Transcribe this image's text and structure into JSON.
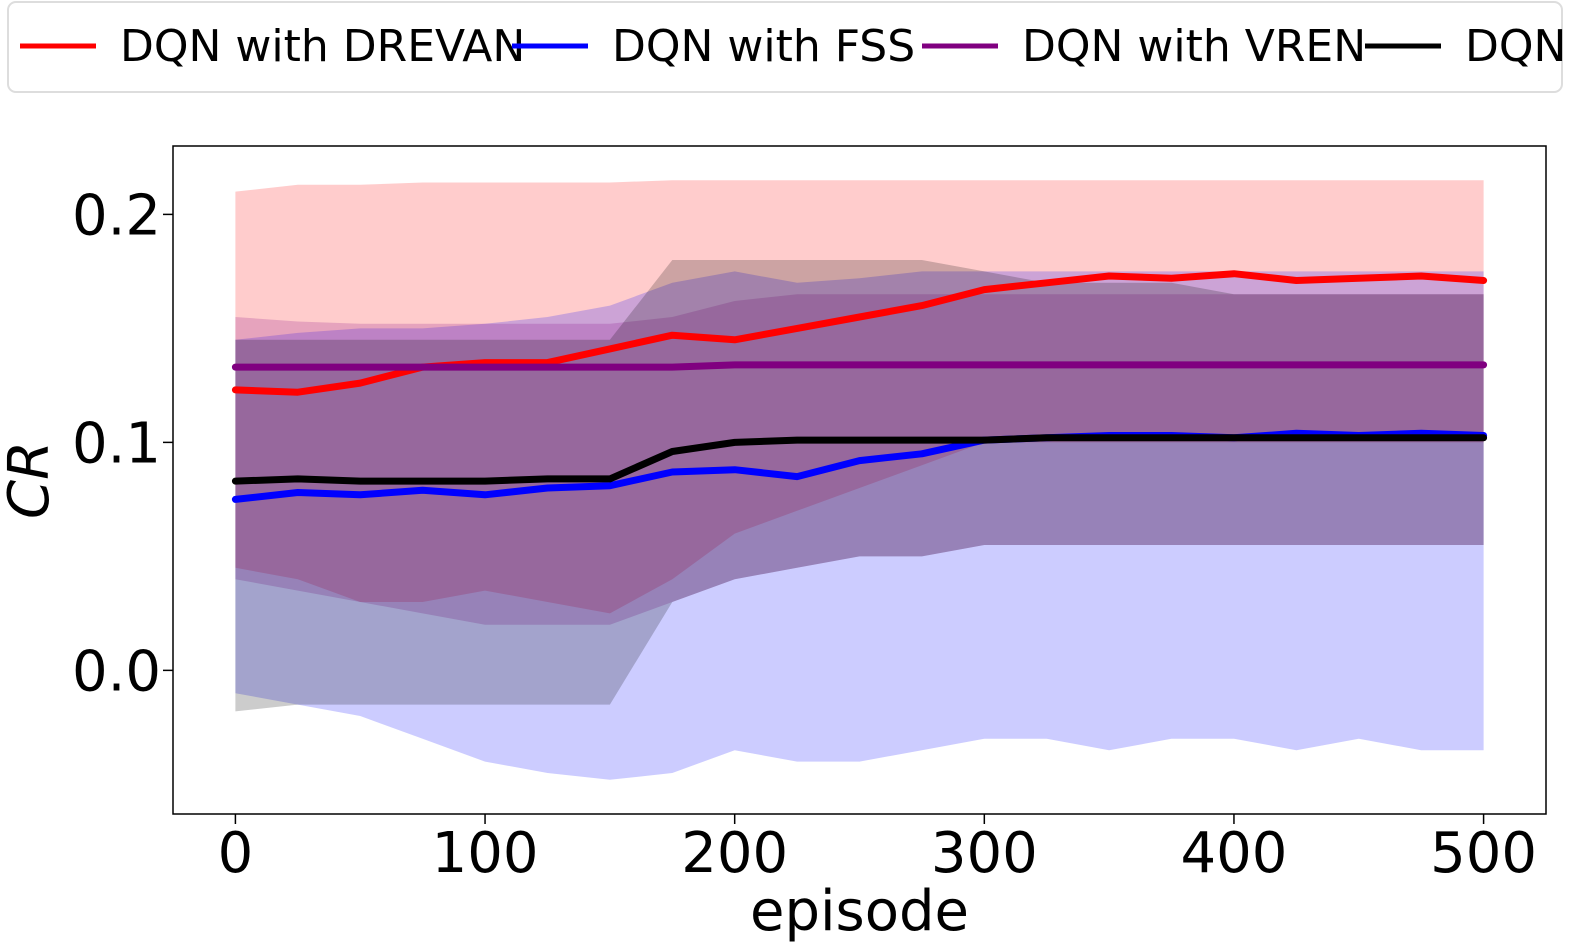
{
  "chart_data": {
    "type": "line",
    "title": "",
    "xlabel": "episode",
    "ylabel": "CR",
    "xlim": [
      -25,
      525
    ],
    "ylim": [
      -0.063,
      0.23
    ],
    "xticks": [
      0,
      100,
      200,
      300,
      400,
      500
    ],
    "xtick_labels": [
      "0",
      "100",
      "200",
      "300",
      "400",
      "500"
    ],
    "yticks": [
      0.0,
      0.1,
      0.2
    ],
    "ytick_labels": [
      "0.0",
      "0.1",
      "0.2"
    ],
    "grid": false,
    "legend": {
      "placement": "top, outside, single row",
      "entries": [
        "DQN with DREVAN",
        "DQN with FSS",
        "DQN with VREN",
        "DQN"
      ]
    },
    "series": [
      {
        "name": "DQN with DREVAN",
        "color": "#ff0000",
        "x": [
          0,
          25,
          50,
          75,
          100,
          125,
          150,
          175,
          200,
          225,
          250,
          275,
          300,
          325,
          350,
          375,
          400,
          425,
          450,
          475,
          500
        ],
        "mean": [
          0.123,
          0.122,
          0.126,
          0.133,
          0.135,
          0.135,
          0.141,
          0.147,
          0.145,
          0.15,
          0.155,
          0.16,
          0.167,
          0.17,
          0.173,
          0.172,
          0.174,
          0.171,
          0.172,
          0.173,
          0.171
        ],
        "upper": [
          0.21,
          0.213,
          0.213,
          0.214,
          0.214,
          0.214,
          0.214,
          0.215,
          0.215,
          0.215,
          0.215,
          0.215,
          0.215,
          0.215,
          0.215,
          0.215,
          0.215,
          0.215,
          0.215,
          0.215,
          0.215
        ],
        "lower": [
          0.045,
          0.04,
          0.03,
          0.03,
          0.035,
          0.03,
          0.025,
          0.04,
          0.06,
          0.07,
          0.08,
          0.09,
          0.1,
          0.1,
          0.1,
          0.1,
          0.1,
          0.1,
          0.1,
          0.1,
          0.1
        ]
      },
      {
        "name": "DQN with FSS",
        "color": "#0000ff",
        "x": [
          0,
          25,
          50,
          75,
          100,
          125,
          150,
          175,
          200,
          225,
          250,
          275,
          300,
          325,
          350,
          375,
          400,
          425,
          450,
          475,
          500
        ],
        "mean": [
          0.075,
          0.078,
          0.077,
          0.079,
          0.077,
          0.08,
          0.081,
          0.087,
          0.088,
          0.085,
          0.092,
          0.095,
          0.101,
          0.102,
          0.103,
          0.103,
          0.102,
          0.104,
          0.103,
          0.104,
          0.103
        ],
        "upper": [
          0.145,
          0.148,
          0.15,
          0.15,
          0.152,
          0.155,
          0.16,
          0.17,
          0.175,
          0.17,
          0.172,
          0.175,
          0.175,
          0.175,
          0.175,
          0.175,
          0.175,
          0.175,
          0.175,
          0.175,
          0.175
        ],
        "lower": [
          -0.01,
          -0.015,
          -0.02,
          -0.03,
          -0.04,
          -0.045,
          -0.048,
          -0.045,
          -0.035,
          -0.04,
          -0.04,
          -0.035,
          -0.03,
          -0.03,
          -0.035,
          -0.03,
          -0.03,
          -0.035,
          -0.03,
          -0.035,
          -0.035
        ]
      },
      {
        "name": "DQN with VREN",
        "color": "#800080",
        "x": [
          0,
          25,
          50,
          75,
          100,
          125,
          150,
          175,
          200,
          225,
          250,
          275,
          300,
          325,
          350,
          375,
          400,
          425,
          450,
          475,
          500
        ],
        "mean": [
          0.133,
          0.133,
          0.133,
          0.133,
          0.133,
          0.133,
          0.133,
          0.133,
          0.134,
          0.134,
          0.134,
          0.134,
          0.134,
          0.134,
          0.134,
          0.134,
          0.134,
          0.134,
          0.134,
          0.134,
          0.134
        ],
        "upper": [
          0.155,
          0.153,
          0.152,
          0.152,
          0.152,
          0.152,
          0.152,
          0.155,
          0.162,
          0.165,
          0.165,
          0.165,
          0.165,
          0.165,
          0.165,
          0.165,
          0.165,
          0.165,
          0.165,
          0.165,
          0.165
        ],
        "lower": [
          0.04,
          0.035,
          0.03,
          0.025,
          0.02,
          0.02,
          0.02,
          0.03,
          0.04,
          0.045,
          0.05,
          0.05,
          0.055,
          0.055,
          0.055,
          0.055,
          0.055,
          0.055,
          0.055,
          0.055,
          0.055
        ]
      },
      {
        "name": "DQN",
        "color": "#000000",
        "x": [
          0,
          25,
          50,
          75,
          100,
          125,
          150,
          175,
          200,
          225,
          250,
          275,
          300,
          325,
          350,
          375,
          400,
          425,
          450,
          475,
          500
        ],
        "mean": [
          0.083,
          0.084,
          0.083,
          0.083,
          0.083,
          0.084,
          0.084,
          0.096,
          0.1,
          0.101,
          0.101,
          0.101,
          0.101,
          0.102,
          0.102,
          0.102,
          0.102,
          0.102,
          0.102,
          0.102,
          0.102
        ],
        "upper": [
          0.145,
          0.145,
          0.145,
          0.145,
          0.145,
          0.145,
          0.145,
          0.18,
          0.18,
          0.18,
          0.18,
          0.18,
          0.175,
          0.17,
          0.17,
          0.17,
          0.165,
          0.165,
          0.165,
          0.165,
          0.165
        ],
        "lower": [
          -0.018,
          -0.015,
          -0.015,
          -0.015,
          -0.015,
          -0.015,
          -0.015,
          0.03,
          0.04,
          0.045,
          0.05,
          0.05,
          0.055,
          0.055,
          0.055,
          0.055,
          0.055,
          0.055,
          0.055,
          0.055,
          0.055
        ]
      }
    ]
  }
}
